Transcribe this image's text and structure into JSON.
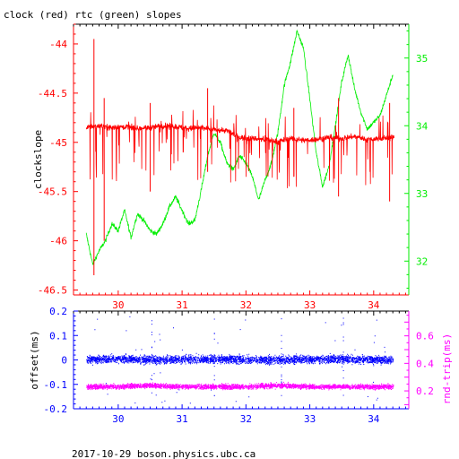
{
  "title": "clock (red) rtc (green) slopes",
  "footer": "2017-10-29  boson.physics.ubc.ca",
  "colors": {
    "clock": "#ff0000",
    "rtc": "#00ee00",
    "offset": "#0000ff",
    "rtt": "#ff00ff",
    "axis": "#000000"
  },
  "chart_data": [
    {
      "type": "line",
      "xlim": [
        29.3,
        34.55
      ],
      "x_ticks": [
        "30",
        "31",
        "32",
        "33",
        "34"
      ],
      "left_axis": {
        "label": "clockslope",
        "lim": [
          -46.55,
          -43.8
        ],
        "ticks": [
          "-44",
          "-44.5",
          "-45",
          "-45.5",
          "-46",
          "-46.5"
        ]
      },
      "right_axis": {
        "label": "",
        "lim": [
          31.5,
          35.5
        ],
        "ticks": [
          "32",
          "33",
          "34",
          "35"
        ]
      },
      "series": [
        {
          "name": "clock",
          "axis": "left",
          "x": [
            29.5,
            29.7,
            29.9,
            30.1,
            30.3,
            30.5,
            30.7,
            30.9,
            31.1,
            31.3,
            31.5,
            31.7,
            31.9,
            32.1,
            32.3,
            32.5,
            32.7,
            32.9,
            33.1,
            33.3,
            33.5,
            33.7,
            33.9,
            34.1,
            34.3
          ],
          "y": [
            -44.85,
            -44.83,
            -44.85,
            -44.84,
            -44.86,
            -44.85,
            -44.83,
            -44.84,
            -44.86,
            -44.85,
            -44.87,
            -44.88,
            -44.95,
            -44.96,
            -44.97,
            -44.99,
            -44.96,
            -44.98,
            -44.97,
            -44.95,
            -44.96,
            -44.94,
            -44.97,
            -44.96,
            -44.95
          ]
        },
        {
          "name": "rtc",
          "axis": "right",
          "x": [
            29.5,
            29.6,
            29.7,
            29.8,
            29.9,
            30.0,
            30.1,
            30.2,
            30.3,
            30.4,
            30.5,
            30.6,
            30.7,
            30.8,
            30.9,
            31.0,
            31.1,
            31.2,
            31.3,
            31.4,
            31.5,
            31.6,
            31.7,
            31.8,
            31.9,
            32.0,
            32.1,
            32.2,
            32.3,
            32.4,
            32.5,
            32.6,
            32.7,
            32.8,
            32.9,
            33.0,
            33.1,
            33.2,
            33.3,
            33.4,
            33.5,
            33.6,
            33.7,
            33.8,
            33.9,
            34.0,
            34.1,
            34.2,
            34.3
          ],
          "y": [
            32.4,
            31.95,
            32.15,
            32.3,
            32.55,
            32.45,
            32.75,
            32.35,
            32.7,
            32.6,
            32.45,
            32.4,
            32.55,
            32.8,
            32.95,
            32.75,
            32.55,
            32.6,
            33.05,
            33.55,
            33.9,
            33.75,
            33.45,
            33.35,
            33.55,
            33.45,
            33.25,
            32.9,
            33.2,
            33.45,
            33.9,
            34.6,
            34.95,
            35.4,
            35.15,
            34.4,
            33.6,
            33.1,
            33.4,
            34.0,
            34.65,
            35.05,
            34.55,
            34.2,
            33.95,
            34.05,
            34.15,
            34.45,
            34.75
          ]
        }
      ]
    },
    {
      "type": "scatter",
      "xlim": [
        29.3,
        34.55
      ],
      "x_ticks": [
        "30",
        "31",
        "32",
        "33",
        "34"
      ],
      "left_axis": {
        "label": "offset(ms)",
        "lim": [
          -0.2,
          0.2
        ],
        "ticks": [
          "0.2",
          "0.1",
          "0",
          "-0.1",
          "-0.2"
        ]
      },
      "right_axis": {
        "label": "rnd-trip(ms)",
        "lim": [
          0.07,
          0.78
        ],
        "ticks": [
          "0.6",
          "0.4",
          "0.2"
        ]
      },
      "series": [
        {
          "name": "offset",
          "axis": "left",
          "x": [
            29.5,
            30.0,
            30.5,
            31.0,
            31.5,
            32.0,
            32.5,
            33.0,
            33.5,
            34.0,
            34.3
          ],
          "y": [
            0.0,
            0.005,
            0.0,
            0.002,
            0.003,
            0.001,
            0.0,
            0.002,
            0.003,
            0.001,
            0.0
          ]
        },
        {
          "name": "round-trip",
          "axis": "right",
          "x": [
            29.5,
            30.0,
            30.5,
            31.0,
            31.5,
            32.0,
            32.5,
            33.0,
            33.5,
            34.0,
            34.3
          ],
          "y": [
            0.23,
            0.23,
            0.24,
            0.23,
            0.23,
            0.23,
            0.24,
            0.23,
            0.23,
            0.23,
            0.23
          ]
        }
      ]
    }
  ]
}
